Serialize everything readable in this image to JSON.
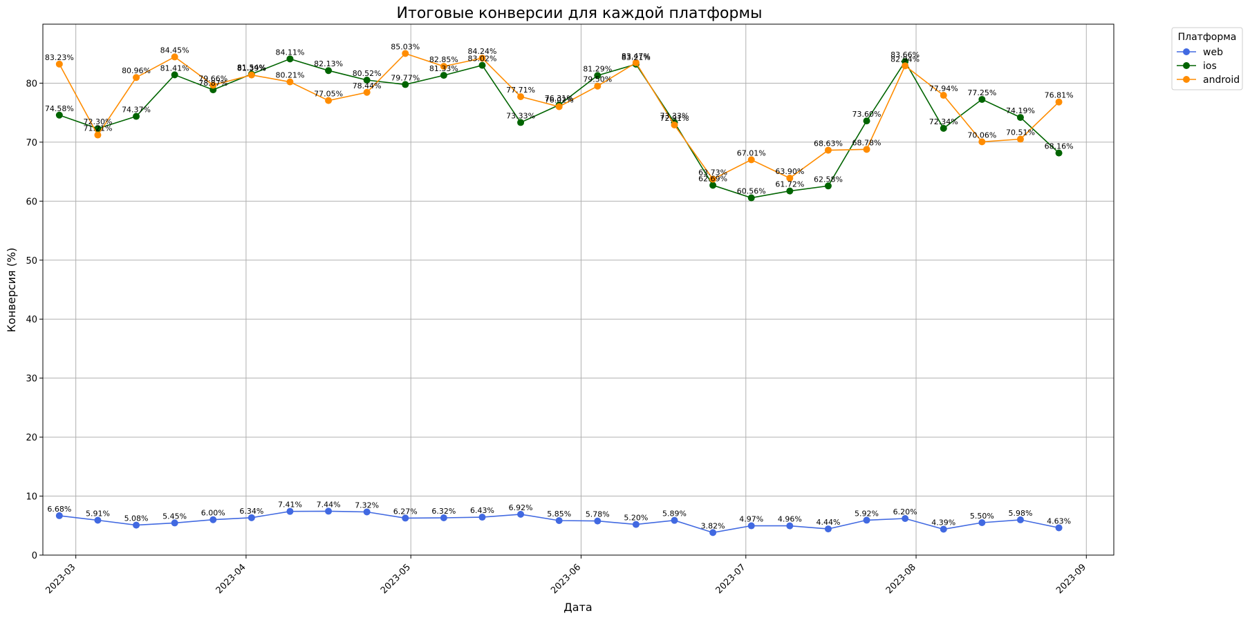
{
  "chart_data": {
    "type": "line",
    "title": "Итоговые конверсии для каждой платформы",
    "xlabel": "Дата",
    "ylabel": "Конверсия (%)",
    "ylim": [
      0,
      90
    ],
    "yticks": [
      0,
      10,
      20,
      30,
      40,
      50,
      60,
      70,
      80
    ],
    "xlim": [
      "2023-02-23",
      "2023-09-06"
    ],
    "xticks": [
      "2023-03",
      "2023-04",
      "2023-05",
      "2023-06",
      "2023-07",
      "2023-08",
      "2023-09"
    ],
    "grid": true,
    "legend": {
      "title": "Платформа",
      "placement": "outside-top-right"
    },
    "x": [
      "2023-02-26",
      "2023-03-05",
      "2023-03-12",
      "2023-03-19",
      "2023-03-26",
      "2023-04-02",
      "2023-04-09",
      "2023-04-16",
      "2023-04-23",
      "2023-04-30",
      "2023-05-07",
      "2023-05-14",
      "2023-05-21",
      "2023-05-28",
      "2023-06-04",
      "2023-06-11",
      "2023-06-18",
      "2023-06-25",
      "2023-07-02",
      "2023-07-09",
      "2023-07-16",
      "2023-07-23",
      "2023-07-30",
      "2023-08-06",
      "2023-08-13",
      "2023-08-20",
      "2023-08-27"
    ],
    "series": [
      {
        "name": "web",
        "color": "#4169e1",
        "values": [
          6.68,
          5.91,
          5.08,
          5.45,
          6.0,
          6.34,
          7.41,
          7.44,
          7.32,
          6.27,
          6.32,
          6.43,
          6.92,
          5.85,
          5.78,
          5.2,
          5.89,
          3.82,
          4.97,
          4.96,
          4.44,
          5.92,
          6.2,
          4.39,
          5.5,
          5.98,
          4.63
        ]
      },
      {
        "name": "ios",
        "color": "#006400",
        "values": [
          74.58,
          72.3,
          74.37,
          81.41,
          78.87,
          81.54,
          84.11,
          82.13,
          80.52,
          79.77,
          81.33,
          83.02,
          73.33,
          76.31,
          81.29,
          83.21,
          73.33,
          62.69,
          60.56,
          61.72,
          62.58,
          73.6,
          83.66,
          72.34,
          77.25,
          74.19,
          68.16
        ]
      },
      {
        "name": "android",
        "color": "#ff8c00",
        "values": [
          83.23,
          71.21,
          80.96,
          84.45,
          79.66,
          81.39,
          80.21,
          77.05,
          78.44,
          85.03,
          82.85,
          84.24,
          77.71,
          76.02,
          79.5,
          83.47,
          72.91,
          63.73,
          67.01,
          63.9,
          68.63,
          68.78,
          82.94,
          77.94,
          70.06,
          70.51,
          76.81
        ]
      }
    ]
  }
}
